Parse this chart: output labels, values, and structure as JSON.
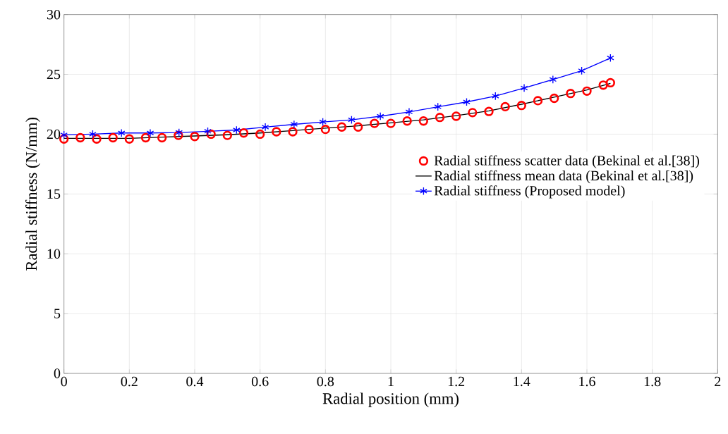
{
  "chart_data": {
    "type": "line",
    "xlabel": "Radial position (mm)",
    "ylabel": "Radial stiffness (N/mm)",
    "xlim": [
      0,
      2
    ],
    "ylim": [
      0,
      30
    ],
    "xticks": [
      0,
      0.2,
      0.4,
      0.6,
      0.8,
      1,
      1.2,
      1.4,
      1.6,
      1.8,
      2
    ],
    "yticks": [
      0,
      5,
      10,
      15,
      20,
      25,
      30
    ],
    "grid": true,
    "legend": "right",
    "series": [
      {
        "name": "Radial stiffness scatter data (Bekinal et al.[38])",
        "type": "scatter",
        "marker": "circle",
        "color": "#ff0000",
        "x": [
          0,
          0.05,
          0.1,
          0.15,
          0.2,
          0.25,
          0.3,
          0.35,
          0.4,
          0.45,
          0.5,
          0.55,
          0.6,
          0.65,
          0.7,
          0.75,
          0.8,
          0.85,
          0.9,
          0.95,
          1.0,
          1.05,
          1.1,
          1.15,
          1.2,
          1.25,
          1.3,
          1.35,
          1.4,
          1.45,
          1.5,
          1.55,
          1.6,
          1.65,
          1.672
        ],
        "values": [
          19.6,
          19.7,
          19.6,
          19.7,
          19.6,
          19.7,
          19.7,
          19.9,
          19.8,
          20.0,
          19.9,
          20.1,
          20.0,
          20.2,
          20.2,
          20.4,
          20.4,
          20.6,
          20.6,
          20.9,
          20.9,
          21.1,
          21.1,
          21.4,
          21.5,
          21.8,
          21.9,
          22.3,
          22.4,
          22.8,
          23.0,
          23.4,
          23.6,
          24.1,
          24.3
        ]
      },
      {
        "name": "Radial stiffness mean data (Bekinal et al.[38])",
        "marker": "none",
        "color": "#000000",
        "x": [
          0,
          0.1,
          0.2,
          0.3,
          0.4,
          0.5,
          0.6,
          0.7,
          0.8,
          0.9,
          1.0,
          1.1,
          1.2,
          1.3,
          1.4,
          1.5,
          1.6,
          1.672
        ],
        "values": [
          19.65,
          19.65,
          19.65,
          19.75,
          19.85,
          19.95,
          20.1,
          20.3,
          20.5,
          20.7,
          20.95,
          21.2,
          21.55,
          21.95,
          22.5,
          23.1,
          23.7,
          24.25
        ]
      },
      {
        "name": "Radial stiffness (Proposed model)",
        "marker": "cross",
        "color": "#0000ff",
        "x": [
          0,
          0.088,
          0.176,
          0.264,
          0.352,
          0.44,
          0.528,
          0.616,
          0.704,
          0.792,
          0.88,
          0.968,
          1.056,
          1.144,
          1.232,
          1.32,
          1.408,
          1.496,
          1.584,
          1.672
        ],
        "values": [
          19.94,
          20.0,
          20.1,
          20.1,
          20.14,
          20.24,
          20.35,
          20.59,
          20.82,
          21.02,
          21.2,
          21.5,
          21.86,
          22.29,
          22.69,
          23.18,
          23.86,
          24.57,
          25.3,
          26.37
        ]
      }
    ]
  }
}
